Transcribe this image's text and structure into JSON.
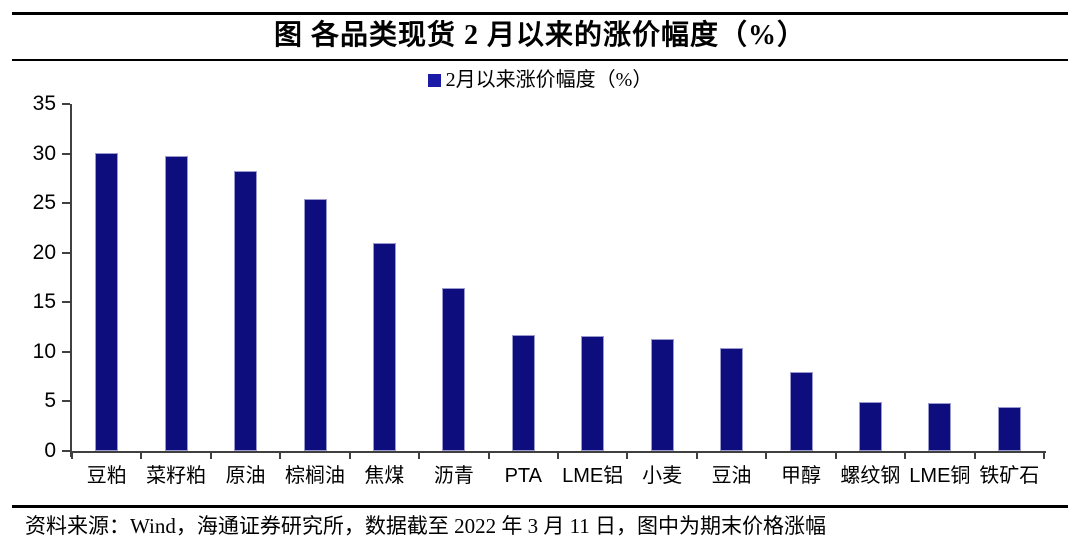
{
  "header": {
    "title": "图 各品类现货 2 月以来的涨价幅度（%）"
  },
  "legend": {
    "label": "2月以来涨价幅度（%）",
    "swatch_color": "#1b1ba8"
  },
  "chart_data": {
    "type": "bar",
    "title": "图 各品类现货 2 月以来的涨价幅度（%）",
    "legend": [
      "2月以来涨价幅度（%）"
    ],
    "legend_position": "top",
    "categories": [
      "豆粕",
      "菜籽粕",
      "原油",
      "棕榈油",
      "焦煤",
      "沥青",
      "PTA",
      "LME铝",
      "小麦",
      "豆油",
      "甲醇",
      "螺纹钢",
      "LME铜",
      "铁矿石"
    ],
    "values": [
      30.1,
      29.8,
      28.2,
      25.4,
      21.0,
      16.4,
      11.7,
      11.6,
      11.3,
      10.4,
      8.0,
      4.9,
      4.8,
      4.4
    ],
    "xlabel": "",
    "ylabel": "",
    "ylim": [
      0,
      35
    ],
    "yticks": [
      0,
      5,
      10,
      15,
      20,
      25,
      30,
      35
    ],
    "grid": false,
    "bar_color": "#0d0d7e",
    "axis_color": "#404040"
  },
  "footer": {
    "source_text": "资料来源：Wind，海通证券研究所，数据截至 2022 年 3 月 11 日，图中为期末价格涨幅"
  }
}
